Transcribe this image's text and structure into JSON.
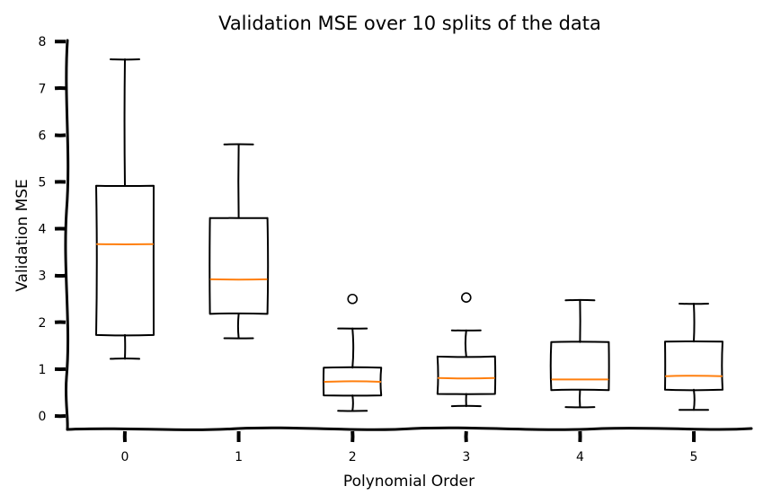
{
  "chart_data": {
    "type": "box",
    "title": "Validation MSE over 10 splits of the data",
    "xlabel": "Polynomial Order",
    "ylabel": "Validation MSE",
    "categories": [
      "0",
      "1",
      "2",
      "3",
      "4",
      "5"
    ],
    "y_ticks": [
      "0",
      "1",
      "2",
      "3",
      "4",
      "5",
      "6",
      "7",
      "8"
    ],
    "ylim": [
      -0.28,
      8.0
    ],
    "grid": false,
    "style": "xkcd",
    "colors": {
      "box": "#000000",
      "median": "#ff7f0e",
      "outlier": "#000000"
    },
    "boxes": [
      {
        "category": "0",
        "whisker_low": 1.22,
        "q1": 1.73,
        "median": 3.67,
        "q3": 4.92,
        "whisker_high": 7.62,
        "outliers": []
      },
      {
        "category": "1",
        "whisker_low": 1.66,
        "q1": 2.18,
        "median": 2.92,
        "q3": 4.23,
        "whisker_high": 5.8,
        "outliers": []
      },
      {
        "category": "2",
        "whisker_low": 0.11,
        "q1": 0.44,
        "median": 0.73,
        "q3": 1.03,
        "whisker_high": 1.87,
        "outliers": [
          2.5
        ]
      },
      {
        "category": "3",
        "whisker_low": 0.21,
        "q1": 0.47,
        "median": 0.81,
        "q3": 1.27,
        "whisker_high": 1.83,
        "outliers": [
          2.53
        ]
      },
      {
        "category": "4",
        "whisker_low": 0.19,
        "q1": 0.55,
        "median": 0.78,
        "q3": 1.58,
        "whisker_high": 2.47,
        "outliers": []
      },
      {
        "category": "5",
        "whisker_low": 0.13,
        "q1": 0.56,
        "median": 0.85,
        "q3": 1.59,
        "whisker_high": 2.4,
        "outliers": []
      }
    ]
  }
}
